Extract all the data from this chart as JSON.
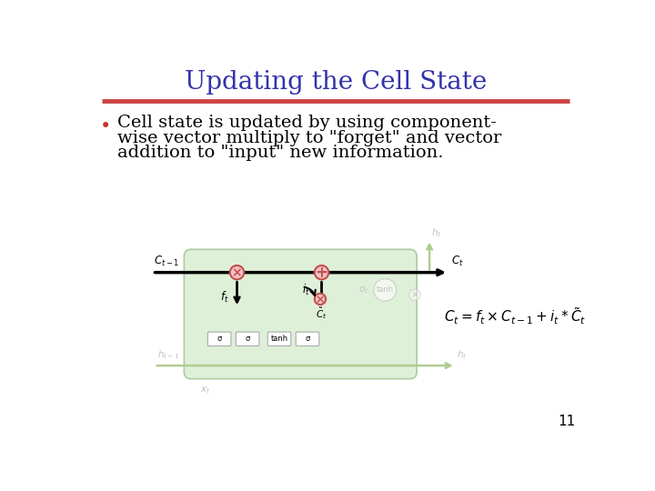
{
  "title": "Updating the Cell State",
  "title_color": "#3333aa",
  "title_fontsize": 20,
  "separator_color": "#cc4444",
  "bullet_text_line1": "Cell state is updated by using component-",
  "bullet_text_line2": "wise vector multiply to \"forget\" and vector",
  "bullet_text_line3": "addition to \"input\" new information.",
  "bullet_color": "#cc3333",
  "text_color": "#000000",
  "text_fontsize": 14,
  "bg_color": "#ffffff",
  "slide_number": "11",
  "diagram_bg": "#dff0d8",
  "diagram_border": "#aacca0",
  "circle_fill": "#f5c0c0",
  "circle_edge": "#c05050",
  "faded_color": "#c0c0c0",
  "faded_green": "#b0cc90"
}
